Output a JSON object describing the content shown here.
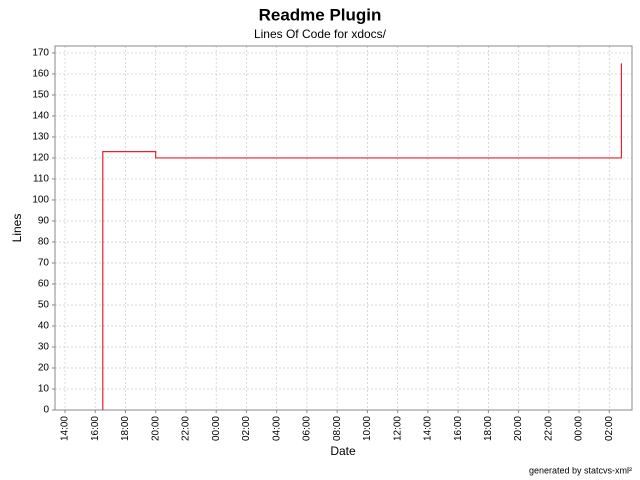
{
  "chart_data": {
    "type": "line",
    "step": true,
    "title": "Readme Plugin",
    "subtitle": "Lines Of Code for xdocs/",
    "x_label": "Date",
    "y_label": "Lines",
    "footer": "generated by statcvs-xml²",
    "x": [
      2.5,
      2.5,
      6.0,
      36.8
    ],
    "series": [
      {
        "name": "Lines",
        "color": "#e8202a",
        "values": [
          0,
          123,
          120,
          165
        ]
      }
    ],
    "xlim": [
      -0.66,
      37.5
    ],
    "xticks": [
      {
        "value": 0,
        "label": "14:00"
      },
      {
        "value": 2,
        "label": "16:00"
      },
      {
        "value": 4,
        "label": "18:00"
      },
      {
        "value": 6,
        "label": "20:00"
      },
      {
        "value": 8,
        "label": "22:00"
      },
      {
        "value": 10,
        "label": "00:00"
      },
      {
        "value": 12,
        "label": "02:00"
      },
      {
        "value": 14,
        "label": "04:00"
      },
      {
        "value": 16,
        "label": "06:00"
      },
      {
        "value": 18,
        "label": "08:00"
      },
      {
        "value": 20,
        "label": "10:00"
      },
      {
        "value": 22,
        "label": "12:00"
      },
      {
        "value": 24,
        "label": "14:00"
      },
      {
        "value": 26,
        "label": "16:00"
      },
      {
        "value": 28,
        "label": "18:00"
      },
      {
        "value": 30,
        "label": "20:00"
      },
      {
        "value": 32,
        "label": "22:00"
      },
      {
        "value": 34,
        "label": "00:00"
      },
      {
        "value": 36,
        "label": "02:00"
      }
    ],
    "ylim": [
      0,
      173.3
    ],
    "yticks": [
      0,
      10,
      20,
      30,
      40,
      50,
      60,
      70,
      80,
      90,
      100,
      110,
      120,
      130,
      140,
      150,
      160,
      170
    ],
    "grid": true
  }
}
